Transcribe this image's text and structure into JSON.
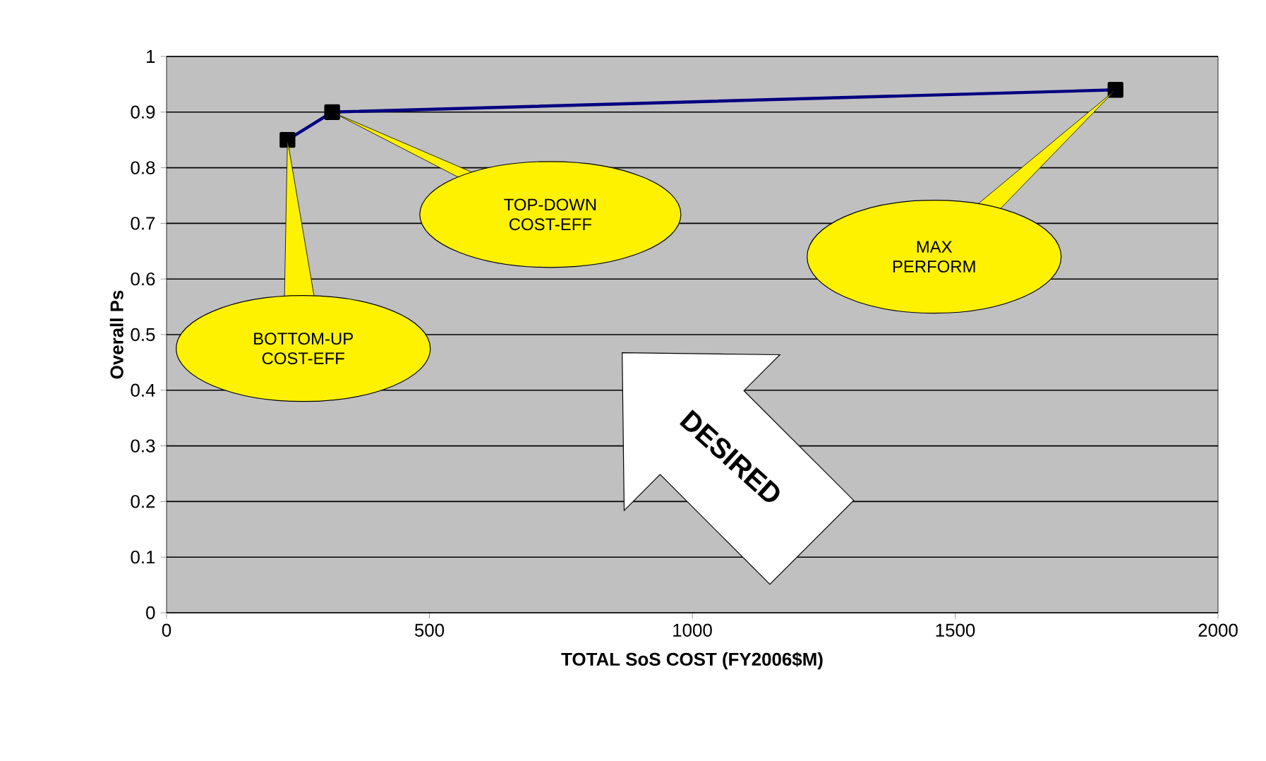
{
  "chart_data": {
    "type": "line",
    "xlabel": "TOTAL SoS COST (FY2006$M)",
    "ylabel": "Overall Ps",
    "x": [
      230,
      315,
      1805
    ],
    "series": [
      {
        "color": "#000080",
        "values": [
          0.85,
          0.9,
          0.94
        ]
      }
    ],
    "marker": "square",
    "line_style": "solid",
    "grid": "y",
    "xlim": [
      0,
      2000
    ],
    "xticks": [
      0,
      500,
      1000,
      1500,
      2000
    ],
    "ylim": [
      0,
      1
    ],
    "yticks": [
      0,
      0.1,
      0.2,
      0.3,
      0.4,
      0.5,
      0.6,
      0.7,
      0.8,
      0.9,
      1
    ],
    "annotations": [
      {
        "text": "BOTTOM-UP COST-EFF",
        "x": 230,
        "y": 0.85
      },
      {
        "text": "TOP-DOWN COST-EFF",
        "x": 315,
        "y": 0.9
      },
      "MAX PERFORM",
      "DESIRED"
    ]
  }
}
